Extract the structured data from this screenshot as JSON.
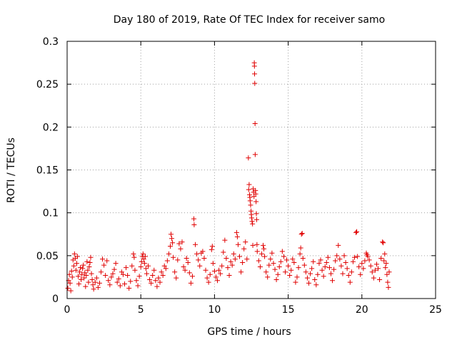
{
  "chart_data": {
    "type": "scatter",
    "title": "Day 180 of 2019, Rate Of TEC Index for receiver samo",
    "xlabel": "GPS time / hours",
    "ylabel": "ROTI / TECUs",
    "xlim": [
      0,
      25
    ],
    "ylim": [
      0,
      0.3
    ],
    "x_ticks": [
      "0",
      "5",
      "10",
      "15",
      "20",
      "25"
    ],
    "y_ticks": [
      "0",
      "0.05",
      "0.1",
      "0.15",
      "0.2",
      "0.25",
      "0.3"
    ],
    "grid": true,
    "marker": "plus",
    "series_color": "#e00000",
    "series": [
      {
        "points": [
          [
            0.05,
            0.012
          ],
          [
            0.1,
            0.021
          ],
          [
            0.15,
            0.028
          ],
          [
            0.2,
            0.018
          ],
          [
            0.25,
            0.009
          ],
          [
            0.3,
            0.032
          ],
          [
            0.35,
            0.025
          ],
          [
            0.4,
            0.045
          ],
          [
            0.45,
            0.038
          ],
          [
            0.5,
            0.052
          ],
          [
            0.55,
            0.047
          ],
          [
            0.6,
            0.033
          ],
          [
            0.65,
            0.041
          ],
          [
            0.7,
            0.049
          ],
          [
            0.75,
            0.026
          ],
          [
            0.8,
            0.017
          ],
          [
            0.85,
            0.031
          ],
          [
            0.9,
            0.036
          ],
          [
            0.95,
            0.022
          ],
          [
            1.0,
            0.028
          ],
          [
            1.05,
            0.035
          ],
          [
            1.1,
            0.039
          ],
          [
            1.15,
            0.024
          ],
          [
            1.2,
            0.03
          ],
          [
            1.25,
            0.014
          ],
          [
            1.3,
            0.027
          ],
          [
            1.35,
            0.043
          ],
          [
            1.4,
            0.033
          ],
          [
            1.45,
            0.019
          ],
          [
            1.5,
            0.037
          ],
          [
            1.55,
            0.042
          ],
          [
            1.6,
            0.048
          ],
          [
            1.65,
            0.029
          ],
          [
            1.7,
            0.022
          ],
          [
            1.75,
            0.016
          ],
          [
            1.8,
            0.011
          ],
          [
            1.9,
            0.019
          ],
          [
            2.0,
            0.024
          ],
          [
            2.1,
            0.013
          ],
          [
            2.2,
            0.018
          ],
          [
            2.3,
            0.031
          ],
          [
            2.4,
            0.046
          ],
          [
            2.5,
            0.039
          ],
          [
            2.6,
            0.027
          ],
          [
            2.7,
            0.044
          ],
          [
            2.8,
            0.021
          ],
          [
            2.9,
            0.016
          ],
          [
            3.0,
            0.025
          ],
          [
            3.1,
            0.029
          ],
          [
            3.2,
            0.034
          ],
          [
            3.3,
            0.041
          ],
          [
            3.4,
            0.019
          ],
          [
            3.5,
            0.023
          ],
          [
            3.6,
            0.015
          ],
          [
            3.7,
            0.031
          ],
          [
            3.8,
            0.028
          ],
          [
            3.9,
            0.017
          ],
          [
            4.0,
            0.036
          ],
          [
            4.1,
            0.027
          ],
          [
            4.2,
            0.012
          ],
          [
            4.3,
            0.02
          ],
          [
            4.4,
            0.038
          ],
          [
            4.5,
            0.052
          ],
          [
            4.55,
            0.048
          ],
          [
            4.6,
            0.033
          ],
          [
            4.7,
            0.021
          ],
          [
            4.8,
            0.015
          ],
          [
            4.9,
            0.026
          ],
          [
            5.0,
            0.037
          ],
          [
            5.05,
            0.043
          ],
          [
            5.1,
            0.049
          ],
          [
            5.15,
            0.052
          ],
          [
            5.2,
            0.046
          ],
          [
            5.25,
            0.041
          ],
          [
            5.3,
            0.049
          ],
          [
            5.35,
            0.035
          ],
          [
            5.4,
            0.029
          ],
          [
            5.5,
            0.038
          ],
          [
            5.6,
            0.022
          ],
          [
            5.7,
            0.018
          ],
          [
            5.8,
            0.027
          ],
          [
            5.9,
            0.033
          ],
          [
            6.0,
            0.021
          ],
          [
            6.1,
            0.014
          ],
          [
            6.2,
            0.024
          ],
          [
            6.3,
            0.019
          ],
          [
            6.4,
            0.031
          ],
          [
            6.5,
            0.027
          ],
          [
            6.6,
            0.038
          ],
          [
            6.7,
            0.035
          ],
          [
            6.8,
            0.044
          ],
          [
            6.9,
            0.052
          ],
          [
            7.0,
            0.061
          ],
          [
            7.05,
            0.075
          ],
          [
            7.1,
            0.07
          ],
          [
            7.15,
            0.065
          ],
          [
            7.2,
            0.048
          ],
          [
            7.3,
            0.031
          ],
          [
            7.4,
            0.024
          ],
          [
            7.5,
            0.045
          ],
          [
            7.6,
            0.064
          ],
          [
            7.7,
            0.058
          ],
          [
            7.8,
            0.066
          ],
          [
            7.9,
            0.037
          ],
          [
            8.0,
            0.033
          ],
          [
            8.1,
            0.047
          ],
          [
            8.2,
            0.042
          ],
          [
            8.3,
            0.03
          ],
          [
            8.4,
            0.018
          ],
          [
            8.5,
            0.026
          ],
          [
            8.6,
            0.093
          ],
          [
            8.62,
            0.086
          ],
          [
            8.7,
            0.063
          ],
          [
            8.8,
            0.052
          ],
          [
            8.9,
            0.045
          ],
          [
            9.0,
            0.038
          ],
          [
            9.1,
            0.053
          ],
          [
            9.2,
            0.055
          ],
          [
            9.3,
            0.047
          ],
          [
            9.4,
            0.033
          ],
          [
            9.5,
            0.024
          ],
          [
            9.6,
            0.019
          ],
          [
            9.7,
            0.028
          ],
          [
            9.8,
            0.057
          ],
          [
            9.85,
            0.061
          ],
          [
            9.9,
            0.041
          ],
          [
            10.0,
            0.032
          ],
          [
            10.1,
            0.025
          ],
          [
            10.2,
            0.021
          ],
          [
            10.3,
            0.033
          ],
          [
            10.4,
            0.029
          ],
          [
            10.5,
            0.038
          ],
          [
            10.6,
            0.054
          ],
          [
            10.7,
            0.068
          ],
          [
            10.8,
            0.047
          ],
          [
            10.9,
            0.036
          ],
          [
            11.0,
            0.027
          ],
          [
            11.1,
            0.043
          ],
          [
            11.2,
            0.039
          ],
          [
            11.3,
            0.052
          ],
          [
            11.4,
            0.046
          ],
          [
            11.5,
            0.077
          ],
          [
            11.55,
            0.072
          ],
          [
            11.6,
            0.063
          ],
          [
            11.7,
            0.049
          ],
          [
            11.8,
            0.031
          ],
          [
            11.9,
            0.042
          ],
          [
            12.0,
            0.058
          ],
          [
            12.1,
            0.066
          ],
          [
            12.2,
            0.046
          ],
          [
            12.3,
            0.164
          ],
          [
            12.32,
            0.127
          ],
          [
            12.35,
            0.133
          ],
          [
            12.38,
            0.121
          ],
          [
            12.4,
            0.118
          ],
          [
            12.42,
            0.114
          ],
          [
            12.45,
            0.109
          ],
          [
            12.48,
            0.102
          ],
          [
            12.5,
            0.098
          ],
          [
            12.52,
            0.094
          ],
          [
            12.55,
            0.09
          ],
          [
            12.58,
            0.087
          ],
          [
            12.6,
            0.062
          ],
          [
            12.62,
            0.128
          ],
          [
            12.65,
            0.124
          ],
          [
            12.68,
            0.119
          ],
          [
            12.7,
            0.275
          ],
          [
            12.71,
            0.271
          ],
          [
            12.72,
            0.262
          ],
          [
            12.73,
            0.251
          ],
          [
            12.75,
            0.204
          ],
          [
            12.76,
            0.168
          ],
          [
            12.78,
            0.126
          ],
          [
            12.8,
            0.122
          ],
          [
            12.82,
            0.113
          ],
          [
            12.84,
            0.099
          ],
          [
            12.86,
            0.092
          ],
          [
            12.88,
            0.063
          ],
          [
            12.9,
            0.055
          ],
          [
            13.0,
            0.044
          ],
          [
            13.1,
            0.037
          ],
          [
            13.2,
            0.052
          ],
          [
            13.3,
            0.062
          ],
          [
            13.35,
            0.058
          ],
          [
            13.4,
            0.049
          ],
          [
            13.5,
            0.031
          ],
          [
            13.6,
            0.025
          ],
          [
            13.7,
            0.039
          ],
          [
            13.8,
            0.046
          ],
          [
            13.9,
            0.053
          ],
          [
            14.0,
            0.041
          ],
          [
            14.1,
            0.034
          ],
          [
            14.2,
            0.022
          ],
          [
            14.3,
            0.028
          ],
          [
            14.4,
            0.037
          ],
          [
            14.5,
            0.043
          ],
          [
            14.6,
            0.055
          ],
          [
            14.7,
            0.049
          ],
          [
            14.8,
            0.031
          ],
          [
            14.9,
            0.045
          ],
          [
            15.0,
            0.038
          ],
          [
            15.1,
            0.027
          ],
          [
            15.2,
            0.033
          ],
          [
            15.3,
            0.046
          ],
          [
            15.4,
            0.042
          ],
          [
            15.5,
            0.019
          ],
          [
            15.6,
            0.025
          ],
          [
            15.7,
            0.036
          ],
          [
            15.8,
            0.052
          ],
          [
            15.85,
            0.059
          ],
          [
            15.9,
            0.075
          ],
          [
            15.95,
            0.076
          ],
          [
            16.0,
            0.047
          ],
          [
            16.1,
            0.039
          ],
          [
            16.2,
            0.031
          ],
          [
            16.3,
            0.024
          ],
          [
            16.4,
            0.018
          ],
          [
            16.5,
            0.029
          ],
          [
            16.6,
            0.035
          ],
          [
            16.7,
            0.043
          ],
          [
            16.8,
            0.022
          ],
          [
            16.9,
            0.016
          ],
          [
            17.0,
            0.028
          ],
          [
            17.1,
            0.041
          ],
          [
            17.2,
            0.045
          ],
          [
            17.3,
            0.033
          ],
          [
            17.4,
            0.026
          ],
          [
            17.5,
            0.037
          ],
          [
            17.6,
            0.042
          ],
          [
            17.7,
            0.048
          ],
          [
            17.8,
            0.036
          ],
          [
            17.9,
            0.029
          ],
          [
            18.0,
            0.021
          ],
          [
            18.1,
            0.034
          ],
          [
            18.2,
            0.044
          ],
          [
            18.3,
            0.05
          ],
          [
            18.4,
            0.062
          ],
          [
            18.5,
            0.046
          ],
          [
            18.6,
            0.038
          ],
          [
            18.7,
            0.029
          ],
          [
            18.8,
            0.05
          ],
          [
            18.9,
            0.042
          ],
          [
            19.0,
            0.035
          ],
          [
            19.1,
            0.027
          ],
          [
            19.2,
            0.019
          ],
          [
            19.3,
            0.031
          ],
          [
            19.4,
            0.043
          ],
          [
            19.5,
            0.048
          ],
          [
            19.6,
            0.077
          ],
          [
            19.65,
            0.078
          ],
          [
            19.7,
            0.049
          ],
          [
            19.8,
            0.037
          ],
          [
            19.9,
            0.028
          ],
          [
            20.0,
            0.041
          ],
          [
            20.1,
            0.035
          ],
          [
            20.2,
            0.044
          ],
          [
            20.3,
            0.053
          ],
          [
            20.35,
            0.051
          ],
          [
            20.4,
            0.049
          ],
          [
            20.5,
            0.045
          ],
          [
            20.6,
            0.038
          ],
          [
            20.7,
            0.031
          ],
          [
            20.8,
            0.024
          ],
          [
            20.9,
            0.033
          ],
          [
            21.0,
            0.04
          ],
          [
            21.1,
            0.035
          ],
          [
            21.2,
            0.022
          ],
          [
            21.3,
            0.047
          ],
          [
            21.4,
            0.066
          ],
          [
            21.45,
            0.065
          ],
          [
            21.5,
            0.044
          ],
          [
            21.55,
            0.052
          ],
          [
            21.6,
            0.036
          ],
          [
            21.65,
            0.041
          ],
          [
            21.7,
            0.028
          ],
          [
            21.75,
            0.019
          ],
          [
            21.8,
            0.013
          ],
          [
            21.85,
            0.031
          ]
        ]
      }
    ]
  }
}
